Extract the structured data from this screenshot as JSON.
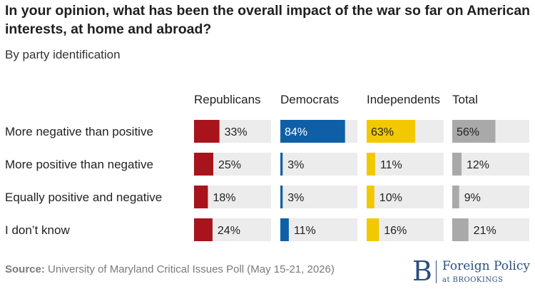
{
  "title": "In your opinion, what has been the overall impact of the war so far on American interests, at home and abroad?",
  "subtitle": "By party identification",
  "source_label": "Source:",
  "source_text": "University of Maryland Critical Issues Poll (May 15-21, 2026)",
  "logo": {
    "letter": "B",
    "name": "Foreign Policy",
    "at": "at BROOKINGS",
    "color": "#2a4e7f"
  },
  "colors": {
    "track": "#ececec",
    "text": "#222222"
  },
  "chart_data": {
    "type": "bar",
    "orientation": "horizontal",
    "grid": false,
    "xlim": [
      0,
      100
    ],
    "categories": [
      "More negative than positive",
      "More positive than negative",
      "Equally positive and negative",
      "I don’t know"
    ],
    "series": [
      {
        "name": "Republicans",
        "color": "#a8141b",
        "values": [
          33,
          25,
          18,
          24
        ],
        "labels": [
          "33%",
          "25%",
          "18%",
          "24%"
        ]
      },
      {
        "name": "Democrats",
        "color": "#0f5fa6",
        "values": [
          84,
          3,
          3,
          11
        ],
        "labels": [
          "84%",
          "3%",
          "3%",
          "11%"
        ]
      },
      {
        "name": "Independents",
        "color": "#f2c900",
        "values": [
          63,
          11,
          10,
          16
        ],
        "labels": [
          "63%",
          "11%",
          "10%",
          "16%"
        ]
      },
      {
        "name": "Total",
        "color": "#a9a9a9",
        "values": [
          56,
          12,
          9,
          21
        ],
        "labels": [
          "56%",
          "12%",
          "9%",
          "21%"
        ]
      }
    ]
  }
}
